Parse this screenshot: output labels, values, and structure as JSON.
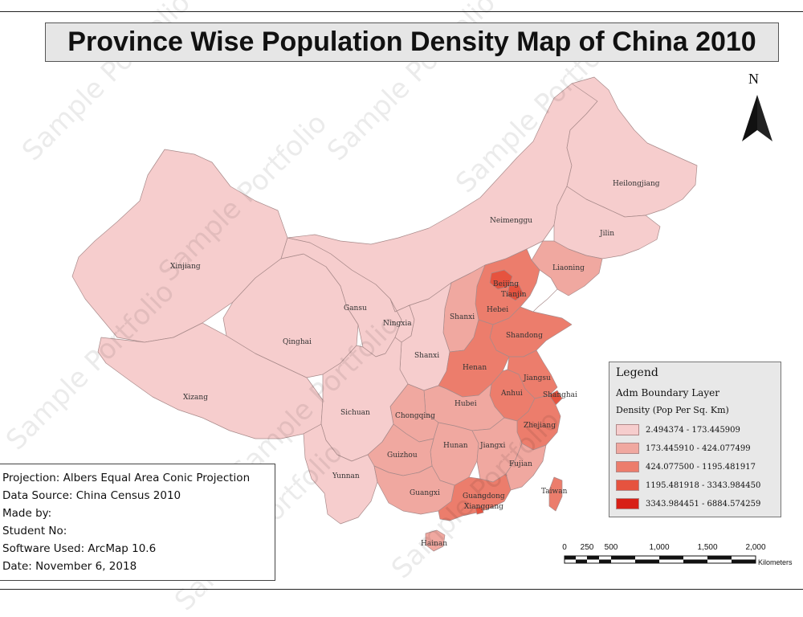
{
  "map": {
    "title": "Province Wise Population Density Map of China 2010",
    "north_label": "N",
    "provinces": [
      {
        "name": "Xinjiang",
        "class": 1
      },
      {
        "name": "Xizang",
        "class": 1
      },
      {
        "name": "Qinghai",
        "class": 1
      },
      {
        "name": "Gansu",
        "class": 1
      },
      {
        "name": "Neimenggu",
        "class": 1
      },
      {
        "name": "Heilongjiang",
        "class": 1
      },
      {
        "name": "Jilin",
        "class": 1
      },
      {
        "name": "Liaoning",
        "class": 2
      },
      {
        "name": "Beijing",
        "class": 4
      },
      {
        "name": "Tianjin",
        "class": 4
      },
      {
        "name": "Hebei",
        "class": 3
      },
      {
        "name": "Shanxi",
        "class": 2
      },
      {
        "name": "Ningxia",
        "class": 1
      },
      {
        "name": "Shaanxi",
        "class": 1
      },
      {
        "name": "Shandong",
        "class": 3
      },
      {
        "name": "Henan",
        "class": 3
      },
      {
        "name": "Jiangsu",
        "class": 3
      },
      {
        "name": "Shanghai",
        "class": 4
      },
      {
        "name": "Anhui",
        "class": 3
      },
      {
        "name": "Hubei",
        "class": 2
      },
      {
        "name": "Chongqing",
        "class": 2
      },
      {
        "name": "Sichuan",
        "class": 1
      },
      {
        "name": "Zhejiang",
        "class": 3
      },
      {
        "name": "Hunan",
        "class": 2
      },
      {
        "name": "Jiangxi",
        "class": 2
      },
      {
        "name": "Guizhou",
        "class": 2
      },
      {
        "name": "Yunnan",
        "class": 1
      },
      {
        "name": "Fujian",
        "class": 2
      },
      {
        "name": "Taiwan",
        "class": 3
      },
      {
        "name": "Guangxi",
        "class": 2
      },
      {
        "name": "Guangdong",
        "class": 3
      },
      {
        "name": "Xianggang",
        "class": 4
      },
      {
        "name": "Hainan",
        "class": 2
      }
    ]
  },
  "legend": {
    "title": "Legend",
    "layer": "Adm Boundary Layer",
    "field": "Density (Pop Per Sq. Km)",
    "classes": [
      {
        "label": "2.494374 - 173.445909",
        "color": "#f6cdcd"
      },
      {
        "label": "173.445910 - 424.077499",
        "color": "#f0a8a0"
      },
      {
        "label": "424.077500 - 1195.481917",
        "color": "#ec7d6c"
      },
      {
        "label": "1195.481918 - 3343.984450",
        "color": "#e6533f"
      },
      {
        "label": "3343.984451 - 6884.574259",
        "color": "#d81f16"
      }
    ]
  },
  "info": {
    "projection": "Projection: Albers Equal Area Conic Projection",
    "source": "Data Source: China Census 2010",
    "made_by": "Made by:",
    "student_no": "Student No:",
    "software": "Software Used: ArcMap 10.6",
    "date": "Date: November 6, 2018"
  },
  "scalebar": {
    "ticks": [
      "0",
      "250",
      "500",
      "1,000",
      "1,500",
      "2,000"
    ],
    "unit": "Kilometers"
  },
  "watermark": "Sample Portfolio"
}
